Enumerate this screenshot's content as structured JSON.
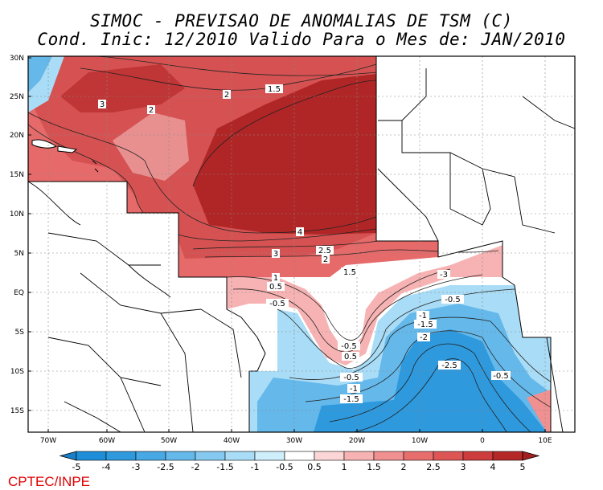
{
  "title": {
    "line1": "SIMOC - PREVISAO DE ANOMALIAS DE TSM (C)",
    "line2": "Cond. Inic: 12/2010   Valido Para o Mes de: JAN/2010"
  },
  "brand": "CPTEC/INPE",
  "lat_labels": [
    "30N",
    "25N",
    "20N",
    "15N",
    "10N",
    "5N",
    "EQ",
    "5S",
    "10S",
    "15S"
  ],
  "lon_labels": [
    "70W",
    "60W",
    "50W",
    "40W",
    "30W",
    "20W",
    "10W",
    "0",
    "10E"
  ],
  "contour_labels": [
    "1.5",
    "2",
    "3",
    "2",
    "4",
    "3",
    "2.5",
    "2",
    "1.5",
    "1",
    "0.5",
    "-0.5",
    "-0.5",
    "0.5",
    "-1",
    "-1.5",
    "-2",
    "-2.5",
    "-3",
    "-0.5",
    "-0.5",
    "-1",
    "-1.5"
  ],
  "colorbar": {
    "labels": [
      "-5",
      "-4",
      "-3",
      "-2.5",
      "-2",
      "-1.5",
      "-1",
      "-0.5",
      "0.5",
      "1",
      "1.5",
      "2",
      "2.5",
      "3",
      "4",
      "5"
    ],
    "colors": [
      "#1f8ed8",
      "#2e99dd",
      "#48a8e4",
      "#64b8ea",
      "#85c9f0",
      "#a9dcf6",
      "#cdeefa",
      "#ffffff",
      "#fcd6d6",
      "#f7b3b3",
      "#f09090",
      "#e86e6e",
      "#dd5555",
      "#cd3d3d",
      "#b52828"
    ]
  }
}
